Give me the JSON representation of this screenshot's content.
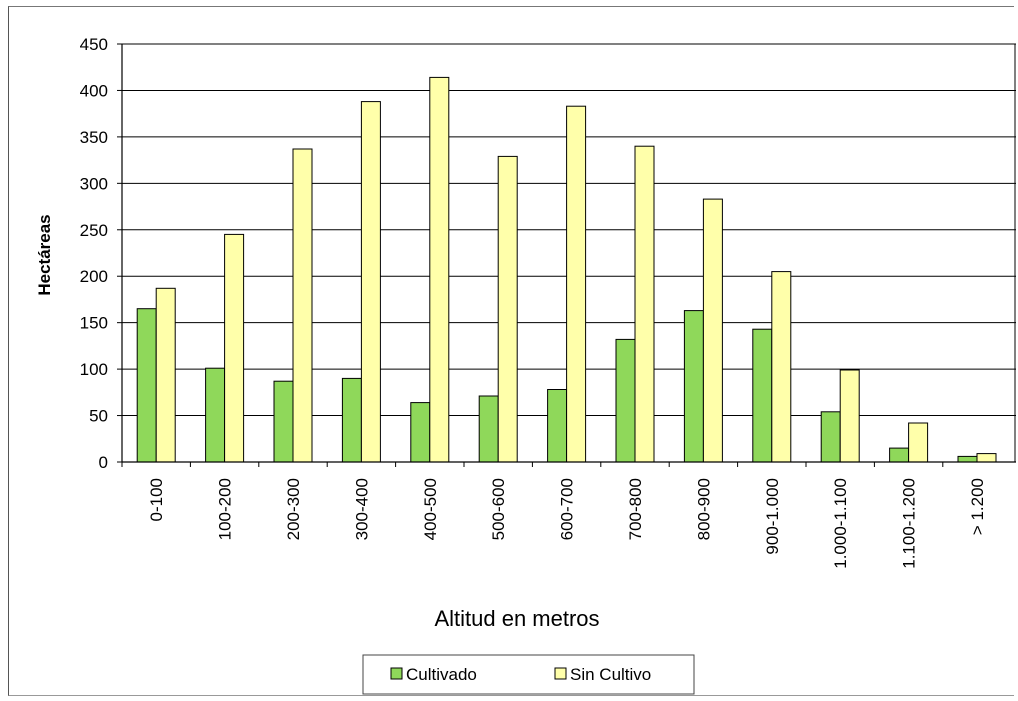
{
  "chart_data": {
    "type": "bar",
    "title": "",
    "xlabel": "Altitud en metros",
    "ylabel": "Hectáreas",
    "ylim": [
      0,
      450
    ],
    "yticks": [
      0,
      50,
      100,
      150,
      200,
      250,
      300,
      350,
      400,
      450
    ],
    "grid": true,
    "legend_position": "bottom",
    "categories": [
      "0-100",
      "100-200",
      "200-300",
      "300-400",
      "400-500",
      "500-600",
      "600-700",
      "700-800",
      "800-900",
      "900-1.000",
      "1.000-1.100",
      "1.100-1.200",
      "> 1.200"
    ],
    "series": [
      {
        "name": "Cultivado",
        "color": "#8FD85A",
        "values": [
          165,
          101,
          87,
          90,
          64,
          71,
          78,
          132,
          163,
          143,
          54,
          15,
          6
        ]
      },
      {
        "name": "Sin Cultivo",
        "color": "#FFFFAA",
        "values": [
          187,
          245,
          337,
          388,
          414,
          329,
          383,
          340,
          283,
          205,
          99,
          42,
          9
        ]
      }
    ]
  }
}
